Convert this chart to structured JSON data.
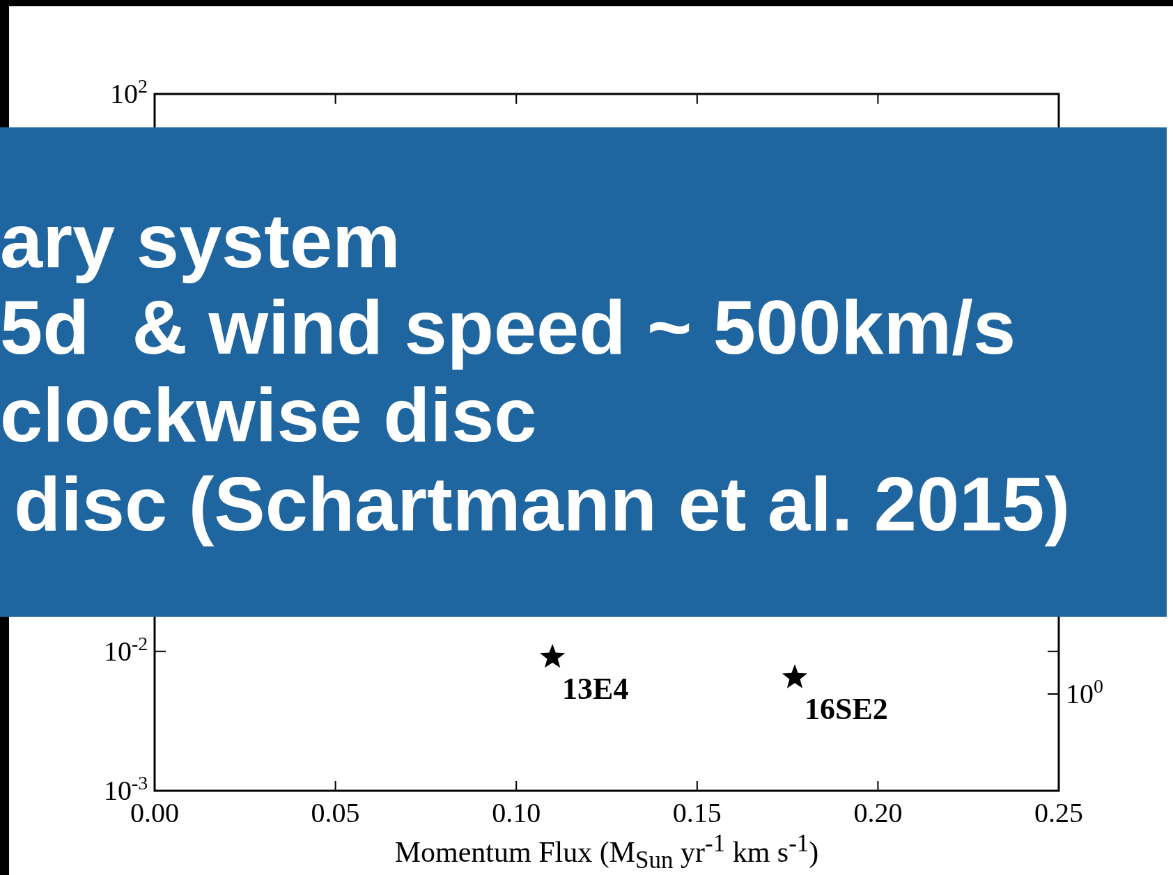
{
  "chart_data": {
    "type": "scatter",
    "xlabel": "Momentum Flux (M$_{Sun}$ yr$^{-1}$ km s$^{-1}$)",
    "series": [
      {
        "x": [
          0.11,
          0.177
        ],
        "values": [
          0.0091,
          0.0065
        ],
        "color": "#000000"
      }
    ],
    "marker": "star",
    "log": "y",
    "grid": false,
    "legend": false,
    "xlim": [
      0,
      0.25
    ],
    "xticks": [
      {
        "value": 0,
        "label": "0.00"
      },
      {
        "value": 0.05,
        "label": "0.05"
      },
      {
        "value": 0.1,
        "label": "0.10"
      },
      {
        "value": 0.15,
        "label": "0.15"
      },
      {
        "value": 0.2,
        "label": "0.20"
      },
      {
        "value": 0.25,
        "label": "0.25"
      }
    ],
    "ylim": [
      0.001,
      100
    ],
    "yticks": [
      {
        "value": 0.001,
        "label": "10$^{-3}$"
      },
      {
        "value": 0.01,
        "label": "10$^{-2}$"
      },
      {
        "value": 100,
        "label": "10$^{2}$"
      }
    ],
    "annotations": [
      {
        "text": "13E4",
        "x": 0.11,
        "y": 0.0091
      },
      {
        "text": "16SE2",
        "x": 0.177,
        "y": 0.0065
      },
      "ary system",
      "5d  & wind speed ~ 500km/s",
      "clockwise disc",
      "disc (Schartmann et al. 2015)",
      "10$^{0}$"
    ]
  }
}
